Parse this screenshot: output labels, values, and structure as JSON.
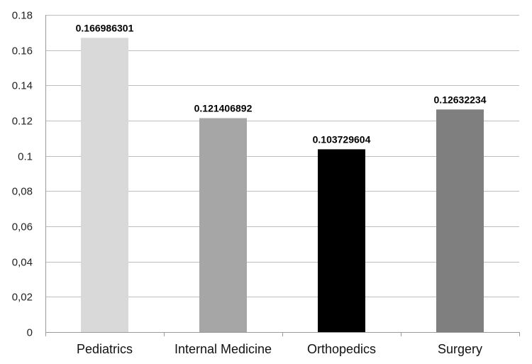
{
  "chart_data": {
    "type": "bar",
    "categories": [
      "Pediatrics",
      "Internal Medicine",
      "Orthopedics",
      "Surgery"
    ],
    "values": [
      0.166986301,
      0.121406892,
      0.103729604,
      0.12632234
    ],
    "data_labels": [
      "0.166986301",
      "0.121406892",
      "0.103729604",
      "0.12632234"
    ],
    "bar_colors": [
      "#d9d9d9",
      "#a6a6a6",
      "#000000",
      "#7f7f7f"
    ],
    "y_ticks": [
      0,
      0.02,
      0.04,
      0.06,
      0.08,
      0.1,
      0.12,
      0.14,
      0.16,
      0.18
    ],
    "y_tick_labels": [
      "0",
      "0,02",
      "0,04",
      "0,06",
      "0,08",
      "0.1",
      "0.12",
      "0.14",
      "0.16",
      "0.18"
    ],
    "ylim": [
      0,
      0.18
    ],
    "grid": true,
    "legend": "none",
    "title": "",
    "xlabel": "",
    "ylabel": ""
  }
}
